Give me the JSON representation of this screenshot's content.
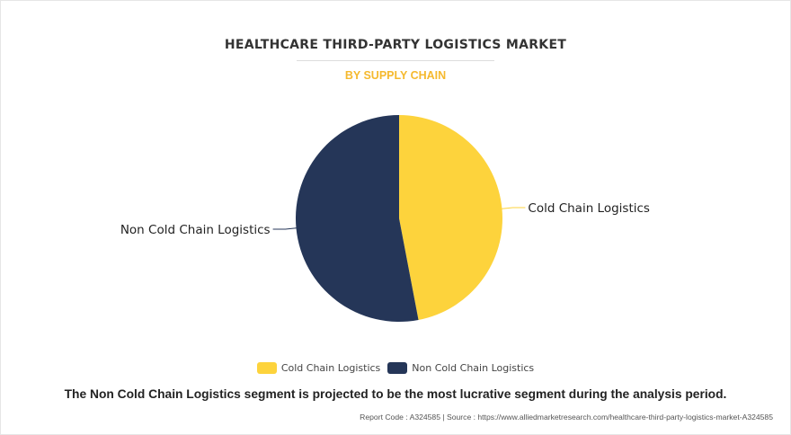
{
  "title": "HEALTHCARE THIRD-PARTY LOGISTICS MARKET",
  "subtitle": "BY SUPPLY CHAIN",
  "chart_data": {
    "type": "pie",
    "title": "HEALTHCARE THIRD-PARTY LOGISTICS MARKET",
    "subtitle": "BY SUPPLY CHAIN",
    "categories": [
      "Cold Chain Logistics",
      "Non Cold Chain Logistics"
    ],
    "values": [
      47,
      53
    ],
    "colors": [
      "#fdd33c",
      "#253658"
    ],
    "legend_position": "bottom-center"
  },
  "legend": [
    {
      "label": "Cold Chain Logistics",
      "color": "#fdd33c"
    },
    {
      "label": "Non Cold Chain Logistics",
      "color": "#253658"
    }
  ],
  "footnote": "The Non Cold Chain Logistics segment is projected to be the most lucrative segment during the analysis period.",
  "source": "Report Code : A324585  |  Source : https://www.alliedmarketresearch.com/healthcare-third-party-logistics-market-A324585"
}
